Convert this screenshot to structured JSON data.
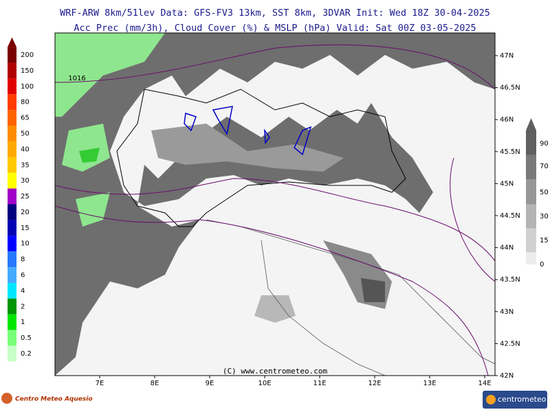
{
  "header": {
    "line1": "WRF-ARW 8km/51lev   Data: GFS-FV3 13km, SST 8km, 3DVAR   Init: Wed 18Z 30-04-2025",
    "line2": "Acc Prec (mm/3h), Cloud Cover (%) & MSLP (hPa)   Valid: Sat 00Z 03-05-2025"
  },
  "map": {
    "lon_labels": [
      "7E",
      "8E",
      "9E",
      "10E",
      "11E",
      "12E",
      "13E",
      "14E"
    ],
    "lat_labels": [
      "47N",
      "46.5N",
      "46N",
      "45.5N",
      "45N",
      "44.5N",
      "44N",
      "43.5N",
      "43N",
      "42.5N",
      "42N"
    ],
    "isobar_label": "1016",
    "credit": "(C) www.centrometeo.com"
  },
  "precip_legend": {
    "values": [
      200,
      150,
      100,
      80,
      65,
      50,
      40,
      35,
      30,
      25,
      20,
      15,
      10,
      8,
      6,
      4,
      2,
      1,
      0.5,
      0.2
    ],
    "colors": [
      "#7a0000",
      "#b00000",
      "#e00000",
      "#ff3c00",
      "#ff6400",
      "#ff8c00",
      "#ffaa00",
      "#ffc800",
      "#ffff00",
      "#a000c8",
      "#000080",
      "#0000b4",
      "#0000ff",
      "#2878ff",
      "#46aaff",
      "#00e6ff",
      "#009600",
      "#00e600",
      "#78ff78",
      "#c8ffc8"
    ]
  },
  "cloud_legend": {
    "values": [
      90,
      70,
      50,
      30,
      15,
      0
    ],
    "colors": [
      "#606060",
      "#7a7a7a",
      "#979797",
      "#b4b4b4",
      "#d0d0d0",
      "#ececec"
    ]
  },
  "footer": {
    "left_logo": "Centro Meteo Aquesio",
    "right_logo": "centrometeo"
  }
}
